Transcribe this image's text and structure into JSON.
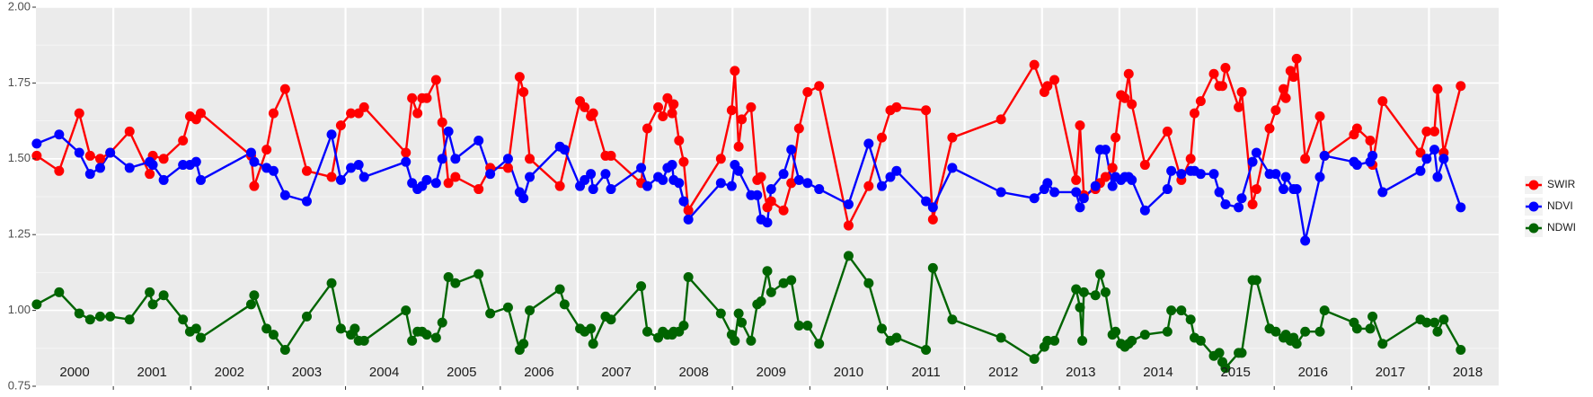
{
  "chart_data": {
    "type": "line",
    "xlim": [
      2000,
      2018.9
    ],
    "xticks": [
      2001,
      2002,
      2003,
      2004,
      2005,
      2006,
      2007,
      2008,
      2009,
      2010,
      2011,
      2012,
      2013,
      2014,
      2015,
      2016,
      2017,
      2018
    ],
    "year_labels": [
      {
        "value": 2000.5,
        "label": "2000"
      },
      {
        "value": 2001.5,
        "label": "2001"
      },
      {
        "value": 2002.5,
        "label": "2002"
      },
      {
        "value": 2003.5,
        "label": "2003"
      },
      {
        "value": 2004.5,
        "label": "2004"
      },
      {
        "value": 2005.5,
        "label": "2005"
      },
      {
        "value": 2006.5,
        "label": "2006"
      },
      {
        "value": 2007.5,
        "label": "2007"
      },
      {
        "value": 2008.5,
        "label": "2008"
      },
      {
        "value": 2009.5,
        "label": "2009"
      },
      {
        "value": 2010.5,
        "label": "2010"
      },
      {
        "value": 2011.5,
        "label": "2011"
      },
      {
        "value": 2012.5,
        "label": "2012"
      },
      {
        "value": 2013.5,
        "label": "2013"
      },
      {
        "value": 2014.5,
        "label": "2014"
      },
      {
        "value": 2015.5,
        "label": "2015"
      },
      {
        "value": 2016.5,
        "label": "2016"
      },
      {
        "value": 2017.5,
        "label": "2017"
      },
      {
        "value": 2018.5,
        "label": "2018"
      }
    ],
    "ylim": [
      0.75,
      2.0
    ],
    "yticks": [
      {
        "value": 0.75,
        "label": "0.75"
      },
      {
        "value": 1,
        "label": "1.00"
      },
      {
        "value": 1.25,
        "label": "1.25"
      },
      {
        "value": 1.5,
        "label": "1.50"
      },
      {
        "value": 1.75,
        "label": "1.75"
      },
      {
        "value": 2,
        "label": "2.00"
      }
    ],
    "yminor": [
      0.875,
      1.125,
      1.375,
      1.625,
      1.875
    ],
    "grid": true,
    "legend": "right",
    "series": [
      {
        "name": "SWIR",
        "color": "#ff0000",
        "x": [
          2000.01,
          2000.3,
          2000.56,
          2000.7,
          2000.83,
          2000.96,
          2001.21,
          2001.47,
          2001.51,
          2001.65,
          2001.9,
          2001.99,
          2002.07,
          2002.13,
          2002.78,
          2002.82,
          2002.98,
          2003.07,
          2003.22,
          2003.5,
          2003.82,
          2003.94,
          2004.07,
          2004.17,
          2004.24,
          2004.78,
          2004.86,
          2004.93,
          2004.99,
          2005.05,
          2005.17,
          2005.25,
          2005.33,
          2005.42,
          2005.72,
          2005.87,
          2006.1,
          2006.25,
          2006.3,
          2006.38,
          2006.77,
          2007.03,
          2007.09,
          2007.17,
          2007.2,
          2007.36,
          2007.43,
          2007.82,
          2007.9,
          2008.04,
          2008.1,
          2008.16,
          2008.22,
          2008.24,
          2008.31,
          2008.37,
          2008.43,
          2008.85,
          2008.99,
          2009.03,
          2009.08,
          2009.12,
          2009.24,
          2009.32,
          2009.37,
          2009.45,
          2009.5,
          2009.66,
          2009.76,
          2009.86,
          2009.97,
          2010.12,
          2010.5,
          2010.76,
          2010.93,
          2011.04,
          2011.12,
          2011.5,
          2011.59,
          2011.84,
          2012.47,
          2012.9,
          2013.03,
          2013.07,
          2013.16,
          2013.44,
          2013.49,
          2013.54,
          2013.69,
          2013.75,
          2013.82,
          2013.91,
          2013.95,
          2014.02,
          2014.07,
          2014.12,
          2014.16,
          2014.33,
          2014.62,
          2014.8,
          2014.92,
          2014.97,
          2015.05,
          2015.22,
          2015.29,
          2015.33,
          2015.37,
          2015.54,
          2015.58,
          2015.72,
          2015.77,
          2015.94,
          2016.02,
          2016.12,
          2016.15,
          2016.21,
          2016.25,
          2016.29,
          2016.4,
          2016.59,
          2016.65,
          2017.03,
          2017.07,
          2017.24,
          2017.27,
          2017.4,
          2017.89,
          2017.97,
          2018.07,
          2018.11,
          2018.19,
          2018.41
        ],
        "values": [
          1.51,
          1.46,
          1.65,
          1.51,
          1.5,
          1.52,
          1.59,
          1.45,
          1.51,
          1.5,
          1.56,
          1.64,
          1.63,
          1.65,
          1.51,
          1.41,
          1.53,
          1.65,
          1.73,
          1.46,
          1.44,
          1.61,
          1.65,
          1.65,
          1.67,
          1.52,
          1.7,
          1.65,
          1.7,
          1.7,
          1.76,
          1.62,
          1.42,
          1.44,
          1.4,
          1.47,
          1.47,
          1.77,
          1.72,
          1.5,
          1.41,
          1.69,
          1.67,
          1.64,
          1.65,
          1.51,
          1.51,
          1.42,
          1.6,
          1.67,
          1.64,
          1.7,
          1.65,
          1.68,
          1.56,
          1.49,
          1.33,
          1.5,
          1.66,
          1.79,
          1.54,
          1.63,
          1.67,
          1.43,
          1.44,
          1.34,
          1.36,
          1.33,
          1.42,
          1.6,
          1.72,
          1.74,
          1.28,
          1.41,
          1.57,
          1.66,
          1.67,
          1.66,
          1.3,
          1.57,
          1.63,
          1.81,
          1.72,
          1.74,
          1.76,
          1.43,
          1.61,
          1.38,
          1.4,
          1.42,
          1.44,
          1.47,
          1.57,
          1.71,
          1.7,
          1.78,
          1.68,
          1.48,
          1.59,
          1.43,
          1.5,
          1.65,
          1.69,
          1.78,
          1.74,
          1.74,
          1.8,
          1.67,
          1.72,
          1.35,
          1.4,
          1.6,
          1.66,
          1.73,
          1.7,
          1.79,
          1.77,
          1.83,
          1.5,
          1.64,
          1.51,
          1.58,
          1.6,
          1.56,
          1.48,
          1.69,
          1.52,
          1.59,
          1.59,
          1.73,
          1.52,
          1.74
        ]
      },
      {
        "name": "NDVI",
        "color": "#0000ff",
        "x": [
          2000.01,
          2000.3,
          2000.56,
          2000.7,
          2000.83,
          2000.96,
          2001.21,
          2001.47,
          2001.51,
          2001.65,
          2001.9,
          2001.99,
          2002.07,
          2002.13,
          2002.78,
          2002.82,
          2002.98,
          2003.07,
          2003.22,
          2003.5,
          2003.82,
          2003.94,
          2004.07,
          2004.17,
          2004.24,
          2004.78,
          2004.86,
          2004.93,
          2004.99,
          2005.05,
          2005.17,
          2005.25,
          2005.33,
          2005.42,
          2005.72,
          2005.87,
          2006.1,
          2006.25,
          2006.3,
          2006.38,
          2006.77,
          2006.83,
          2007.03,
          2007.09,
          2007.17,
          2007.2,
          2007.36,
          2007.43,
          2007.82,
          2007.9,
          2008.04,
          2008.1,
          2008.16,
          2008.22,
          2008.24,
          2008.31,
          2008.37,
          2008.43,
          2008.85,
          2008.99,
          2009.03,
          2009.08,
          2009.24,
          2009.32,
          2009.37,
          2009.45,
          2009.5,
          2009.66,
          2009.76,
          2009.86,
          2009.97,
          2010.12,
          2010.5,
          2010.76,
          2010.93,
          2011.04,
          2011.12,
          2011.5,
          2011.59,
          2011.84,
          2012.47,
          2012.9,
          2013.03,
          2013.07,
          2013.16,
          2013.44,
          2013.49,
          2013.54,
          2013.69,
          2013.75,
          2013.82,
          2013.91,
          2013.95,
          2014.02,
          2014.07,
          2014.12,
          2014.16,
          2014.33,
          2014.62,
          2014.67,
          2014.8,
          2014.92,
          2014.97,
          2015.05,
          2015.22,
          2015.29,
          2015.37,
          2015.54,
          2015.58,
          2015.72,
          2015.77,
          2015.94,
          2016.02,
          2016.12,
          2016.15,
          2016.25,
          2016.29,
          2016.4,
          2016.59,
          2016.65,
          2017.03,
          2017.07,
          2017.24,
          2017.27,
          2017.4,
          2017.89,
          2017.97,
          2018.07,
          2018.11,
          2018.19,
          2018.41
        ],
        "values": [
          1.55,
          1.58,
          1.52,
          1.45,
          1.47,
          1.52,
          1.47,
          1.49,
          1.48,
          1.43,
          1.48,
          1.48,
          1.49,
          1.43,
          1.52,
          1.49,
          1.47,
          1.46,
          1.38,
          1.36,
          1.58,
          1.43,
          1.47,
          1.48,
          1.44,
          1.49,
          1.42,
          1.4,
          1.41,
          1.43,
          1.42,
          1.5,
          1.59,
          1.5,
          1.56,
          1.45,
          1.5,
          1.39,
          1.37,
          1.44,
          1.54,
          1.53,
          1.41,
          1.43,
          1.45,
          1.4,
          1.45,
          1.4,
          1.47,
          1.41,
          1.44,
          1.43,
          1.47,
          1.48,
          1.43,
          1.42,
          1.36,
          1.3,
          1.42,
          1.41,
          1.48,
          1.46,
          1.38,
          1.38,
          1.3,
          1.29,
          1.4,
          1.45,
          1.53,
          1.43,
          1.42,
          1.4,
          1.35,
          1.55,
          1.41,
          1.44,
          1.46,
          1.36,
          1.34,
          1.47,
          1.39,
          1.37,
          1.4,
          1.42,
          1.39,
          1.39,
          1.34,
          1.37,
          1.41,
          1.53,
          1.53,
          1.41,
          1.44,
          1.43,
          1.44,
          1.44,
          1.43,
          1.33,
          1.4,
          1.46,
          1.45,
          1.46,
          1.46,
          1.45,
          1.45,
          1.39,
          1.35,
          1.34,
          1.37,
          1.49,
          1.52,
          1.45,
          1.45,
          1.4,
          1.44,
          1.4,
          1.4,
          1.23,
          1.44,
          1.51,
          1.49,
          1.48,
          1.49,
          1.51,
          1.39,
          1.46,
          1.5,
          1.53,
          1.44,
          1.5,
          1.34
        ]
      },
      {
        "name": "NDWI",
        "color": "#006400",
        "x": [
          2000.01,
          2000.3,
          2000.56,
          2000.7,
          2000.83,
          2000.96,
          2001.21,
          2001.47,
          2001.51,
          2001.65,
          2001.9,
          2001.99,
          2002.07,
          2002.13,
          2002.78,
          2002.82,
          2002.98,
          2003.07,
          2003.22,
          2003.5,
          2003.82,
          2003.94,
          2004.07,
          2004.12,
          2004.17,
          2004.24,
          2004.78,
          2004.86,
          2004.93,
          2004.99,
          2005.05,
          2005.17,
          2005.25,
          2005.33,
          2005.42,
          2005.72,
          2005.87,
          2006.1,
          2006.25,
          2006.3,
          2006.38,
          2006.77,
          2006.83,
          2007.03,
          2007.09,
          2007.17,
          2007.2,
          2007.36,
          2007.43,
          2007.82,
          2007.9,
          2008.04,
          2008.1,
          2008.16,
          2008.22,
          2008.24,
          2008.31,
          2008.37,
          2008.43,
          2008.85,
          2008.99,
          2009.03,
          2009.08,
          2009.12,
          2009.24,
          2009.32,
          2009.37,
          2009.45,
          2009.5,
          2009.66,
          2009.76,
          2009.86,
          2009.97,
          2010.12,
          2010.5,
          2010.76,
          2010.93,
          2011.04,
          2011.12,
          2011.5,
          2011.59,
          2011.84,
          2012.47,
          2012.9,
          2013.03,
          2013.07,
          2013.16,
          2013.44,
          2013.49,
          2013.52,
          2013.54,
          2013.69,
          2013.75,
          2013.82,
          2013.91,
          2013.95,
          2014.02,
          2014.07,
          2014.12,
          2014.16,
          2014.33,
          2014.62,
          2014.67,
          2014.8,
          2014.92,
          2014.97,
          2015.05,
          2015.22,
          2015.29,
          2015.33,
          2015.37,
          2015.54,
          2015.58,
          2015.72,
          2015.77,
          2015.94,
          2016.02,
          2016.12,
          2016.15,
          2016.21,
          2016.25,
          2016.29,
          2016.4,
          2016.59,
          2016.65,
          2017.03,
          2017.07,
          2017.24,
          2017.27,
          2017.4,
          2017.89,
          2017.97,
          2018.07,
          2018.11,
          2018.19,
          2018.41
        ],
        "values": [
          1.02,
          1.06,
          0.99,
          0.97,
          0.98,
          0.98,
          0.97,
          1.06,
          1.02,
          1.05,
          0.97,
          0.93,
          0.94,
          0.91,
          1.02,
          1.05,
          0.94,
          0.92,
          0.87,
          0.98,
          1.09,
          0.94,
          0.92,
          0.94,
          0.9,
          0.9,
          1.0,
          0.9,
          0.93,
          0.93,
          0.92,
          0.91,
          0.96,
          1.11,
          1.09,
          1.12,
          0.99,
          1.01,
          0.87,
          0.89,
          1.0,
          1.07,
          1.02,
          0.94,
          0.93,
          0.94,
          0.89,
          0.98,
          0.97,
          1.08,
          0.93,
          0.91,
          0.93,
          0.92,
          0.92,
          0.93,
          0.93,
          0.95,
          1.11,
          0.99,
          0.92,
          0.9,
          0.99,
          0.96,
          0.9,
          1.02,
          1.03,
          1.13,
          1.06,
          1.09,
          1.1,
          0.95,
          0.95,
          0.89,
          1.18,
          1.09,
          0.94,
          0.9,
          0.91,
          0.87,
          1.14,
          0.97,
          0.91,
          0.84,
          0.88,
          0.9,
          0.9,
          1.07,
          1.01,
          0.9,
          1.06,
          1.05,
          1.12,
          1.06,
          0.92,
          0.93,
          0.89,
          0.88,
          0.89,
          0.9,
          0.92,
          0.93,
          1.0,
          1.0,
          0.97,
          0.91,
          0.9,
          0.85,
          0.86,
          0.83,
          0.81,
          0.86,
          0.86,
          1.1,
          1.1,
          0.94,
          0.93,
          0.91,
          0.92,
          0.9,
          0.91,
          0.89,
          0.93,
          0.93,
          1.0,
          0.96,
          0.94,
          0.94,
          0.98,
          0.89,
          0.97,
          0.96,
          0.96,
          0.93,
          0.97,
          0.87
        ]
      }
    ]
  }
}
